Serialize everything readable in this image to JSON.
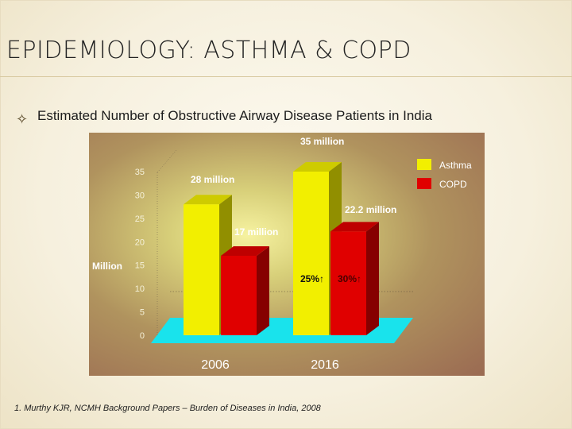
{
  "slide": {
    "title": "EPIDEMIOLOGY: ASTHMA & COPD",
    "bullet_icon": "hollow-star-bullet-icon",
    "bullet_text": "Estimated Number of Obstructive Airway Disease Patients in India",
    "citation": "1. Murthy KJR, NCMH Background Papers – Burden of Diseases in India, 2008"
  },
  "chart_data": {
    "type": "bar",
    "style": "3d-clustered",
    "categories": [
      "2006",
      "2016"
    ],
    "series": [
      {
        "name": "Asthma",
        "color": "#f2ef00",
        "values": [
          28,
          35
        ],
        "data_labels": [
          "28 million",
          "35 million"
        ]
      },
      {
        "name": "COPD",
        "color": "#e00000",
        "values": [
          17,
          22.2
        ],
        "data_labels": [
          "17 million",
          "22.2 million"
        ]
      }
    ],
    "ylabel": "Million",
    "ylim": [
      0,
      35
    ],
    "yticks": [
      0,
      5,
      10,
      15,
      20,
      25,
      30,
      35
    ],
    "legend_position": "top-right",
    "annotations": [
      "25%↑",
      "30%↑"
    ],
    "floor_color": "#19e3ec",
    "background": "#a8785a"
  }
}
